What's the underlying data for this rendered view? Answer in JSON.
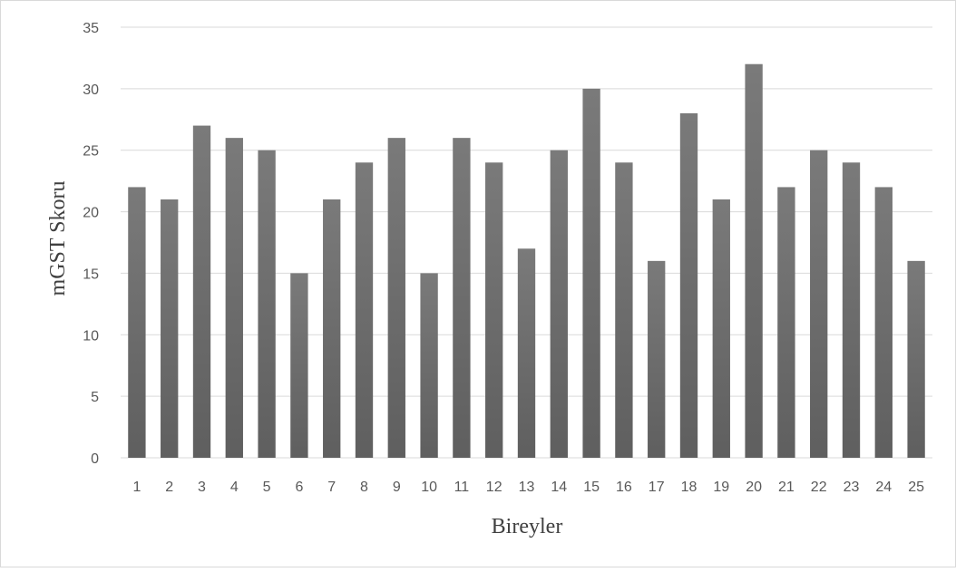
{
  "chart_data": {
    "type": "bar",
    "xlabel": "Bireyler",
    "ylabel": "mGST Skoru",
    "categories": [
      "1",
      "2",
      "3",
      "4",
      "5",
      "6",
      "7",
      "8",
      "9",
      "10",
      "11",
      "12",
      "13",
      "14",
      "15",
      "16",
      "17",
      "18",
      "19",
      "20",
      "21",
      "22",
      "23",
      "24",
      "25"
    ],
    "values": [
      22,
      21,
      27,
      26,
      25,
      15,
      21,
      24,
      26,
      15,
      26,
      24,
      17,
      25,
      30,
      24,
      16,
      28,
      21,
      32,
      22,
      25,
      24,
      22,
      16
    ],
    "ylim": [
      0,
      35
    ],
    "yticks": [
      0,
      5,
      10,
      15,
      20,
      25,
      30,
      35
    ],
    "grid": true,
    "legend": "none",
    "colors": {
      "bar": "#5f5f5f",
      "bar_light": "#7a7a7a",
      "grid": "#d9d9d9"
    }
  }
}
